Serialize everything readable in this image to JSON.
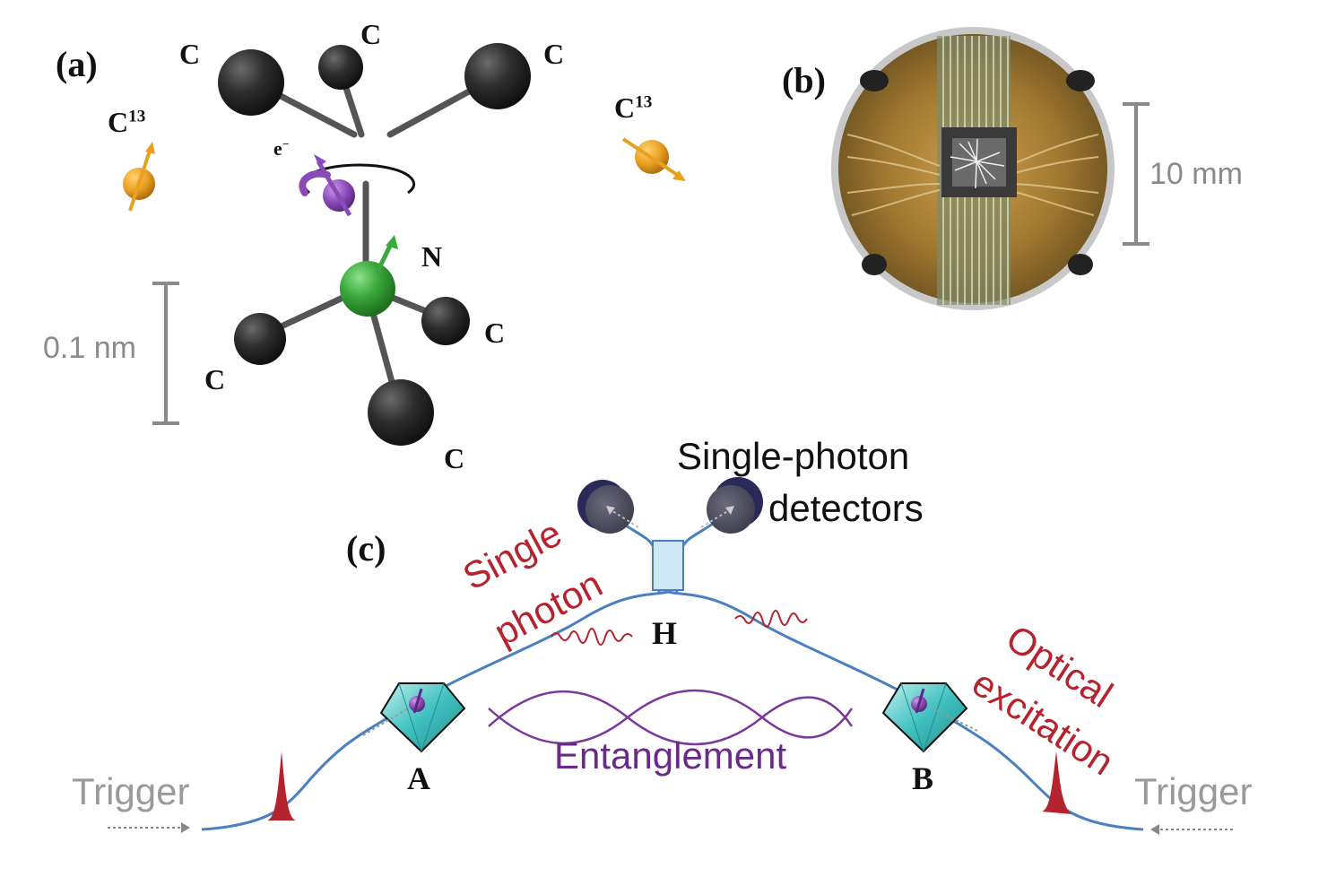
{
  "panel_a": {
    "label": "(a)",
    "carbon_label": "C",
    "c13_label_base": "C",
    "c13_label_sup": "13",
    "electron_label": "e",
    "electron_sup": "−",
    "nitrogen_label": "N",
    "scale_label": "0.1 nm"
  },
  "panel_b": {
    "label": "(b)",
    "scale_label": "10 mm"
  },
  "panel_c": {
    "label": "(c)",
    "detectors_line1": "Single-photon",
    "detectors_line2": "detectors",
    "single_photon_line1": "Single",
    "single_photon_line2": "photon",
    "optical_line1": "Optical",
    "optical_line2": "excitation",
    "beamsplitter_label": "H",
    "node_a_label": "A",
    "node_b_label": "B",
    "entanglement_label": "Entanglement",
    "trigger_left": "Trigger",
    "trigger_right": "Trigger"
  },
  "colors": {
    "carbon": "#2a2a2a",
    "nitrogen": "#3aa83a",
    "electron": "#8a4ab8",
    "c13": "#e8a020",
    "fiber": "#4a7fc0",
    "photon_red": "#b5232e",
    "entanglement": "#7a3a9a",
    "diamond": "#3fc0c0",
    "detector": "#3a3a5a"
  }
}
